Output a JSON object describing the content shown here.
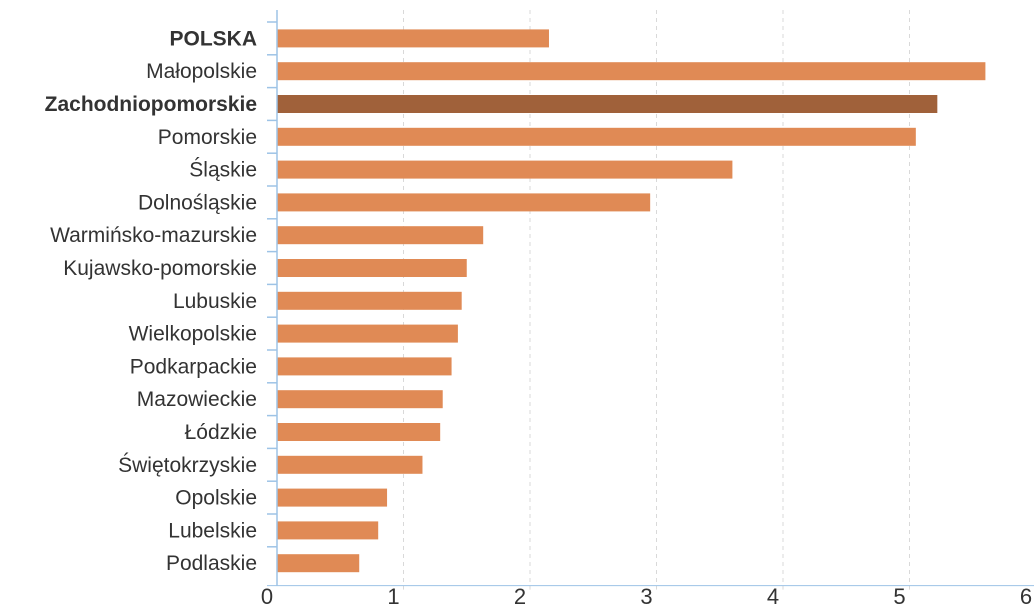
{
  "chart_data": {
    "type": "bar",
    "orientation": "horizontal",
    "categories": [
      "POLSKA",
      "Małopolskie",
      "Zachodniopomorskie",
      "Pomorskie",
      "Śląskie",
      "Dolnośląskie",
      "Warmińsko-mazurskie",
      "Kujawsko-pomorskie",
      "Lubuskie",
      "Wielkopolskie",
      "Podkarpackie",
      "Mazowieckie",
      "Łódzkie",
      "Świętokrzyskie",
      "Opolskie",
      "Lubelskie",
      "Podlaskie"
    ],
    "values": [
      2.15,
      5.6,
      5.22,
      5.05,
      3.6,
      2.95,
      1.63,
      1.5,
      1.46,
      1.43,
      1.38,
      1.31,
      1.29,
      1.15,
      0.87,
      0.8,
      0.65
    ],
    "bold_categories": [
      "POLSKA",
      "Zachodniopomorskie"
    ],
    "highlighted_category": "Zachodniopomorskie",
    "xlim": [
      0,
      6
    ],
    "xticks": [
      "0",
      "1",
      "2",
      "3",
      "4",
      "5",
      "6"
    ],
    "grid": "vertical dashed",
    "title": "",
    "xlabel": "",
    "ylabel": "",
    "colors": {
      "bar": "#e08a55",
      "highlight": "#a0613a",
      "axis": "#9dc3e6",
      "grid": "#d9d9d9",
      "text": "#333333"
    }
  }
}
